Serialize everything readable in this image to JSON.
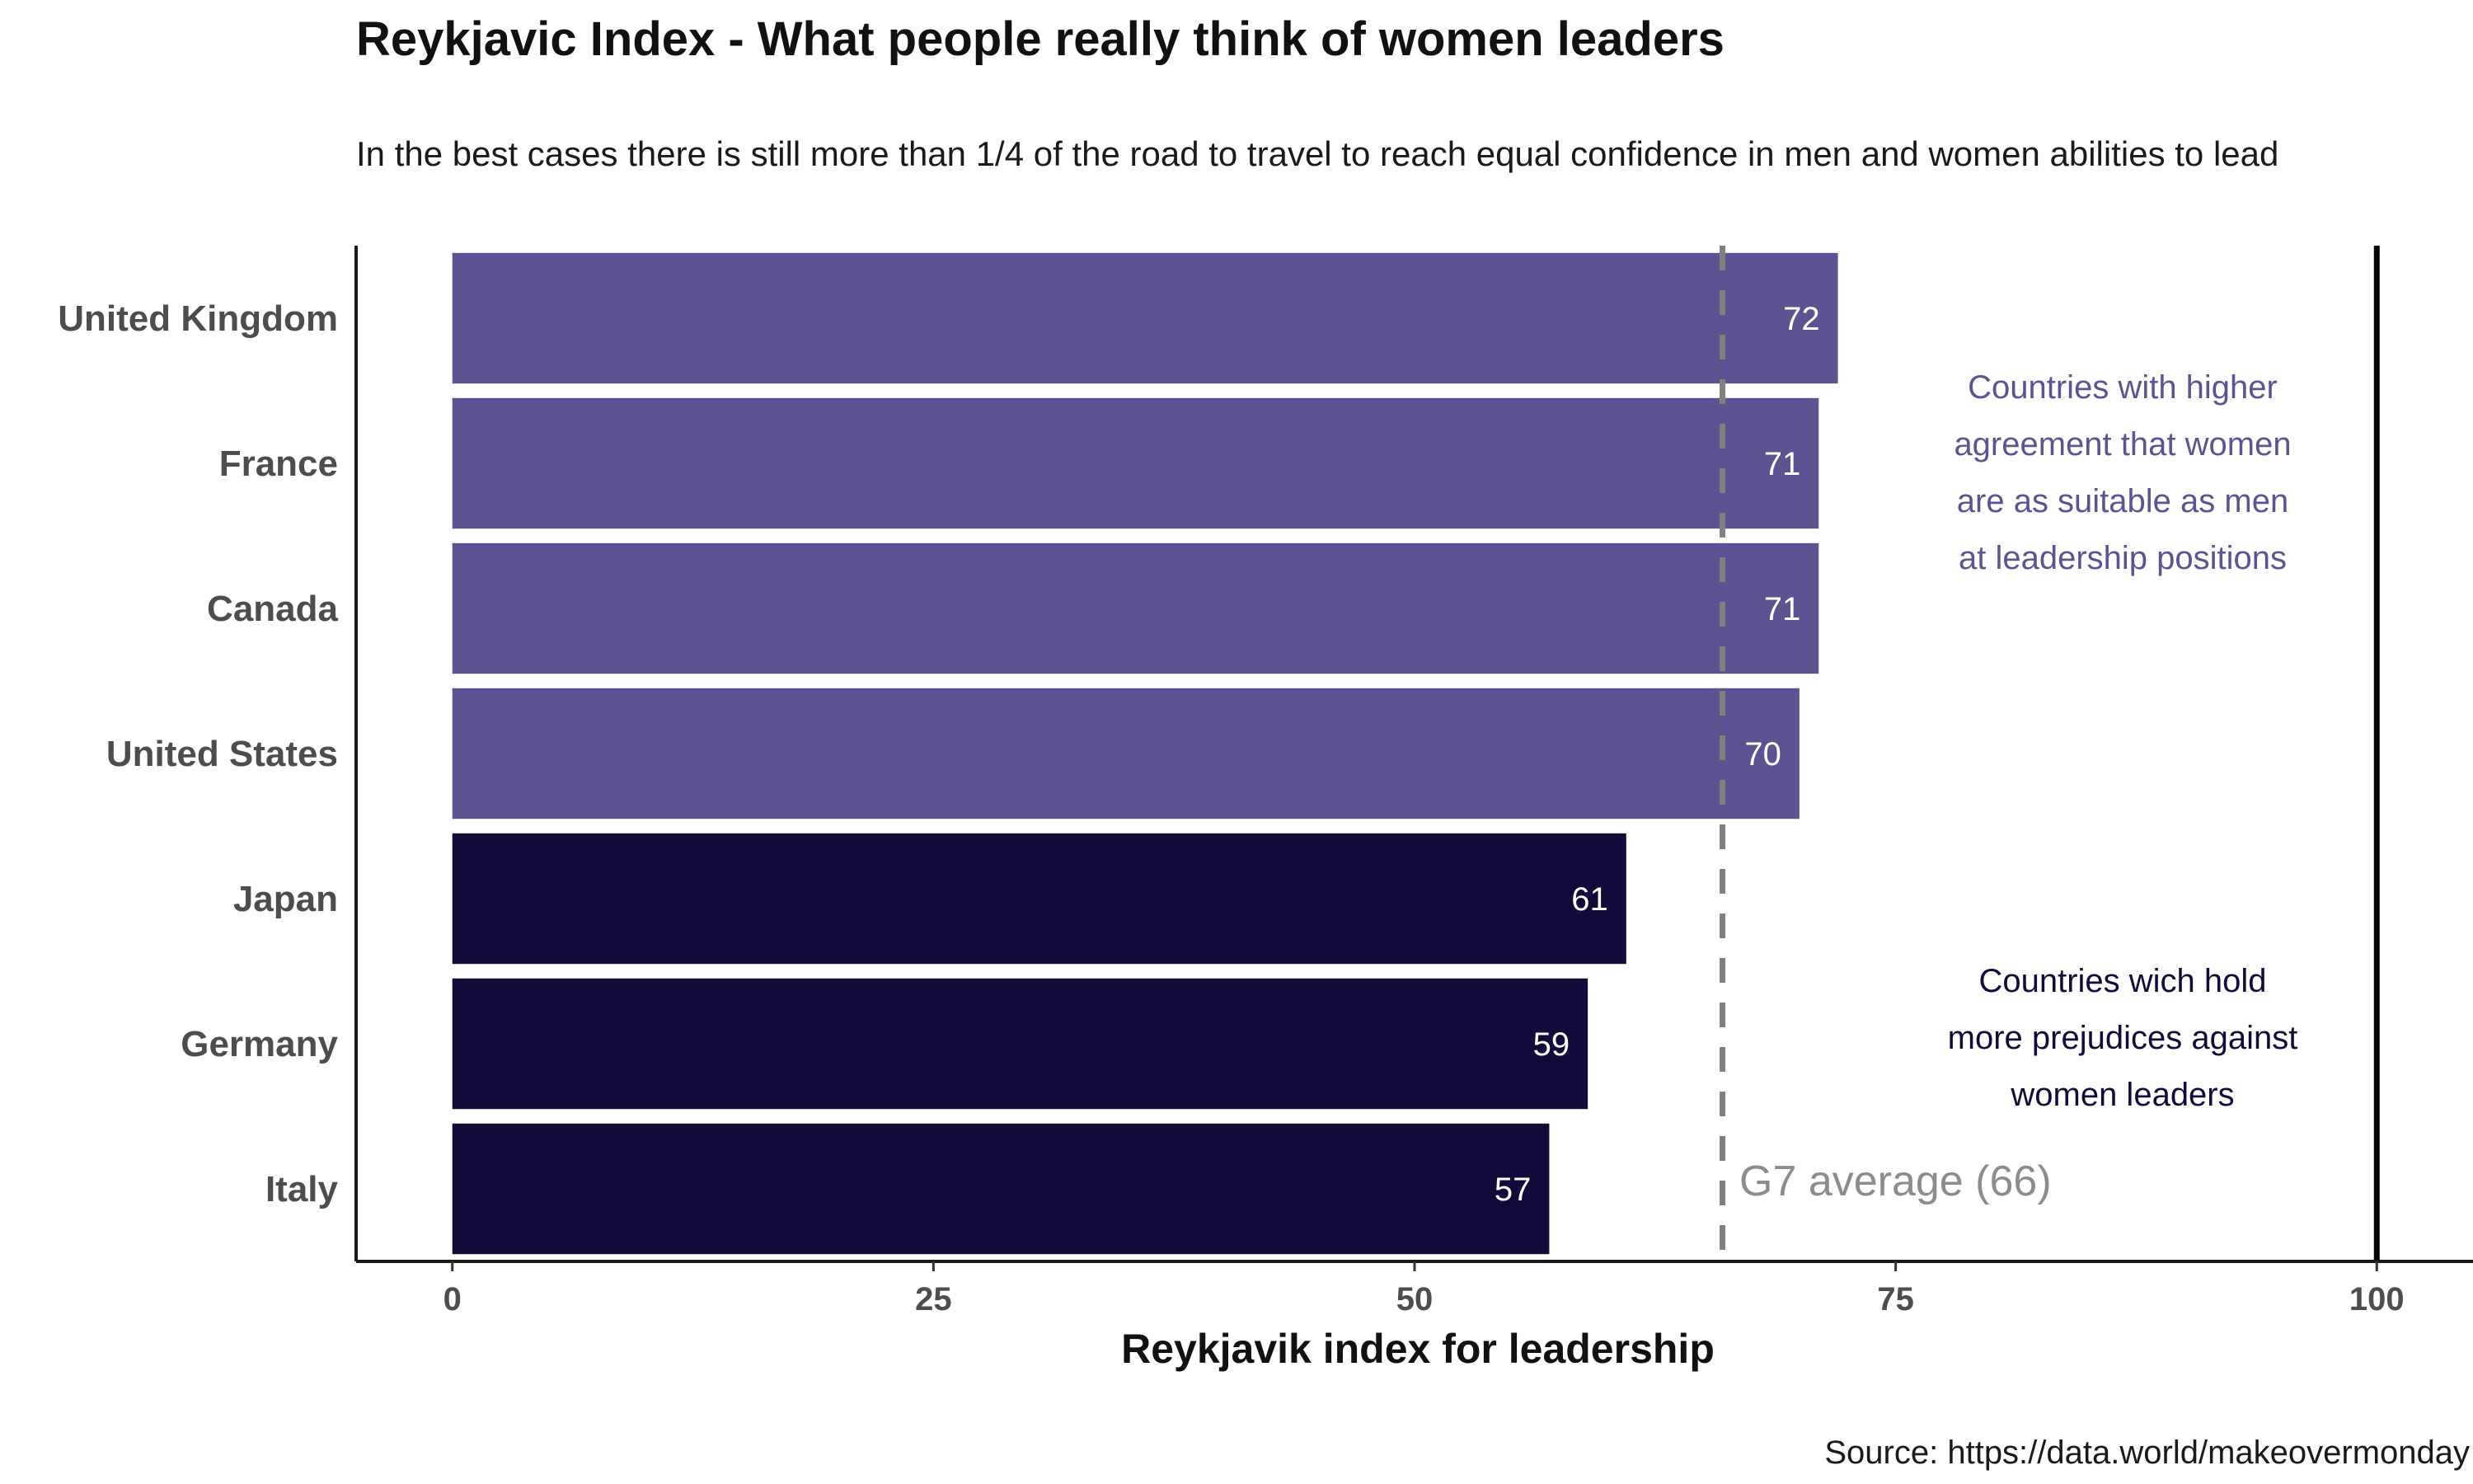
{
  "chart_data": {
    "type": "bar",
    "orientation": "horizontal",
    "title": "Reykjavic Index - What people really think of women leaders",
    "subtitle": "In the best cases there is still more than 1/4 of the road to travel to reach equal confidence in men and women abilities to lead",
    "categories": [
      "United Kingdom",
      "France",
      "Canada",
      "United States",
      "Japan",
      "Germany",
      "Italy"
    ],
    "values": [
      72,
      71,
      71,
      70,
      61,
      59,
      57
    ],
    "groups": [
      "higher",
      "higher",
      "higher",
      "higher",
      "lower",
      "lower",
      "lower"
    ],
    "xlabel": "Reykjavik index for leadership",
    "ylabel": "",
    "xlim": [
      -5,
      105
    ],
    "xticks": [
      0,
      25,
      50,
      75,
      100
    ],
    "reference_lines": {
      "average": {
        "value": 66,
        "label": "G7 average (66)",
        "style": "dashed"
      },
      "target": {
        "value": 100,
        "style": "solid"
      }
    },
    "annotations": {
      "higher_group": [
        "Countries with higher",
        "agreement that women",
        "are as suitable as men",
        "at leadership positions"
      ],
      "lower_group": [
        "Countries wich hold",
        "more prejudices against",
        "women leaders"
      ]
    },
    "caption": "Source: https://data.world/makeovermonday",
    "grid": false,
    "legend": "none"
  },
  "colors": {
    "higher": "#5e5291",
    "lower": "#130a3a",
    "average_line": "#808080",
    "target_line": "#000000",
    "axis_line": "#1a1a1a"
  }
}
